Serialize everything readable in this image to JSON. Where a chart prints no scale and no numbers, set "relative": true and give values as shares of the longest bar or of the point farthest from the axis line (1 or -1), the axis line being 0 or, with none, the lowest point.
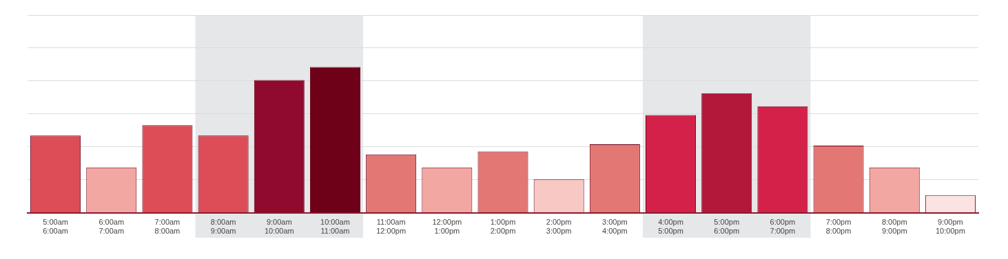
{
  "chart_data": {
    "type": "bar",
    "relative": true,
    "grid": "y",
    "categories": [
      "5:00am\n6:00am",
      "6:00am\n7:00am",
      "7:00am\n8:00am",
      "8:00am\n9:00am",
      "9:00am\n10:00am",
      "10:00am\n11:00am",
      "11:00am\n12:00pm",
      "12:00pm\n1:00pm",
      "1:00pm\n2:00pm",
      "2:00pm\n3:00pm",
      "3:00pm\n4:00pm",
      "4:00pm\n5:00pm",
      "5:00pm\n6:00pm",
      "6:00pm\n7:00pm",
      "7:00pm\n8:00pm",
      "8:00pm\n9:00pm",
      "9:00pm\n10:00pm"
    ],
    "values": [
      0.53,
      0.31,
      0.6,
      0.53,
      0.91,
      1,
      0.4,
      0.31,
      0.42,
      0.23,
      0.47,
      0.67,
      0.82,
      0.73,
      0.46,
      0.31,
      0.12
    ],
    "colors": [
      "#dc4d58",
      "#f2a7a2",
      "#dc4d58",
      "#dc4d58",
      "#8f0a2d",
      "#6e0018",
      "#e27774",
      "#f2a7a2",
      "#e27774",
      "#f8c8c4",
      "#e27774",
      "#d4214a",
      "#b3173a",
      "#d4214a",
      "#e27774",
      "#f2a7a2",
      "#fbe3e1"
    ],
    "bands": [
      {
        "axis": "x",
        "from": "8:00am\n9:00am",
        "to": "10:00am\n11:00am",
        "color": "#e6e7e9"
      },
      {
        "axis": "x",
        "from": "4:00pm\n5:00pm",
        "to": "6:00pm\n7:00pm",
        "color": "#e6e7e9"
      }
    ]
  }
}
